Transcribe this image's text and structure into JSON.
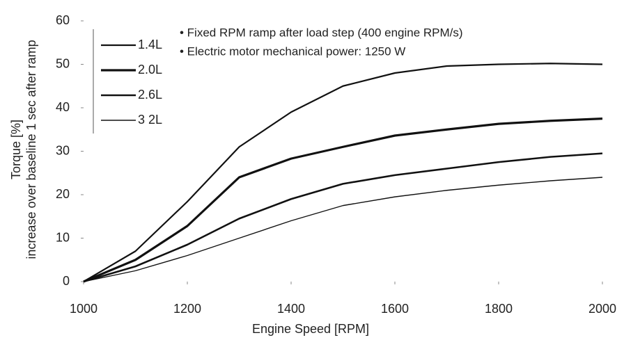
{
  "chart_data": {
    "type": "line",
    "annotations": [
      "• Fixed RPM ramp after load step (400 engine RPM/s)",
      "• Electric motor mechanical power: 1250 W"
    ],
    "xlabel": "Engine Speed [RPM]",
    "ylabel": [
      "Torque [%]",
      "increase over baseline 1 sec after ramp"
    ],
    "x": [
      1000,
      1100,
      1200,
      1300,
      1400,
      1500,
      1600,
      1700,
      1800,
      1900,
      2000
    ],
    "series": [
      {
        "name": "1.4L",
        "color": "#111111",
        "width": 2.2,
        "values": [
          0,
          7,
          18.4,
          31,
          39,
          45,
          48,
          49.6,
          50,
          50.2,
          50
        ]
      },
      {
        "name": "2.0L",
        "color": "#111111",
        "width": 3.2,
        "values": [
          0,
          5,
          12.8,
          24,
          28.3,
          31,
          33.6,
          35,
          36.3,
          37,
          37.5
        ]
      },
      {
        "name": "2.6L",
        "color": "#111111",
        "width": 2.6,
        "values": [
          0,
          3.5,
          8.5,
          14.5,
          19,
          22.5,
          24.5,
          26,
          27.5,
          28.7,
          29.5
        ]
      },
      {
        "name": "3 2L",
        "color": "#111111",
        "width": 1.4,
        "values": [
          0,
          2.5,
          6,
          10,
          14,
          17.5,
          19.5,
          21,
          22.2,
          23.2,
          24
        ]
      }
    ],
    "xlim": [
      1000,
      2000
    ],
    "xticks": [
      1000,
      1200,
      1400,
      1600,
      1800,
      2000
    ],
    "ylim": [
      0,
      60
    ],
    "yticks": [
      0,
      10,
      20,
      30,
      40,
      50,
      60
    ],
    "legend": "upper left",
    "grid": false
  }
}
